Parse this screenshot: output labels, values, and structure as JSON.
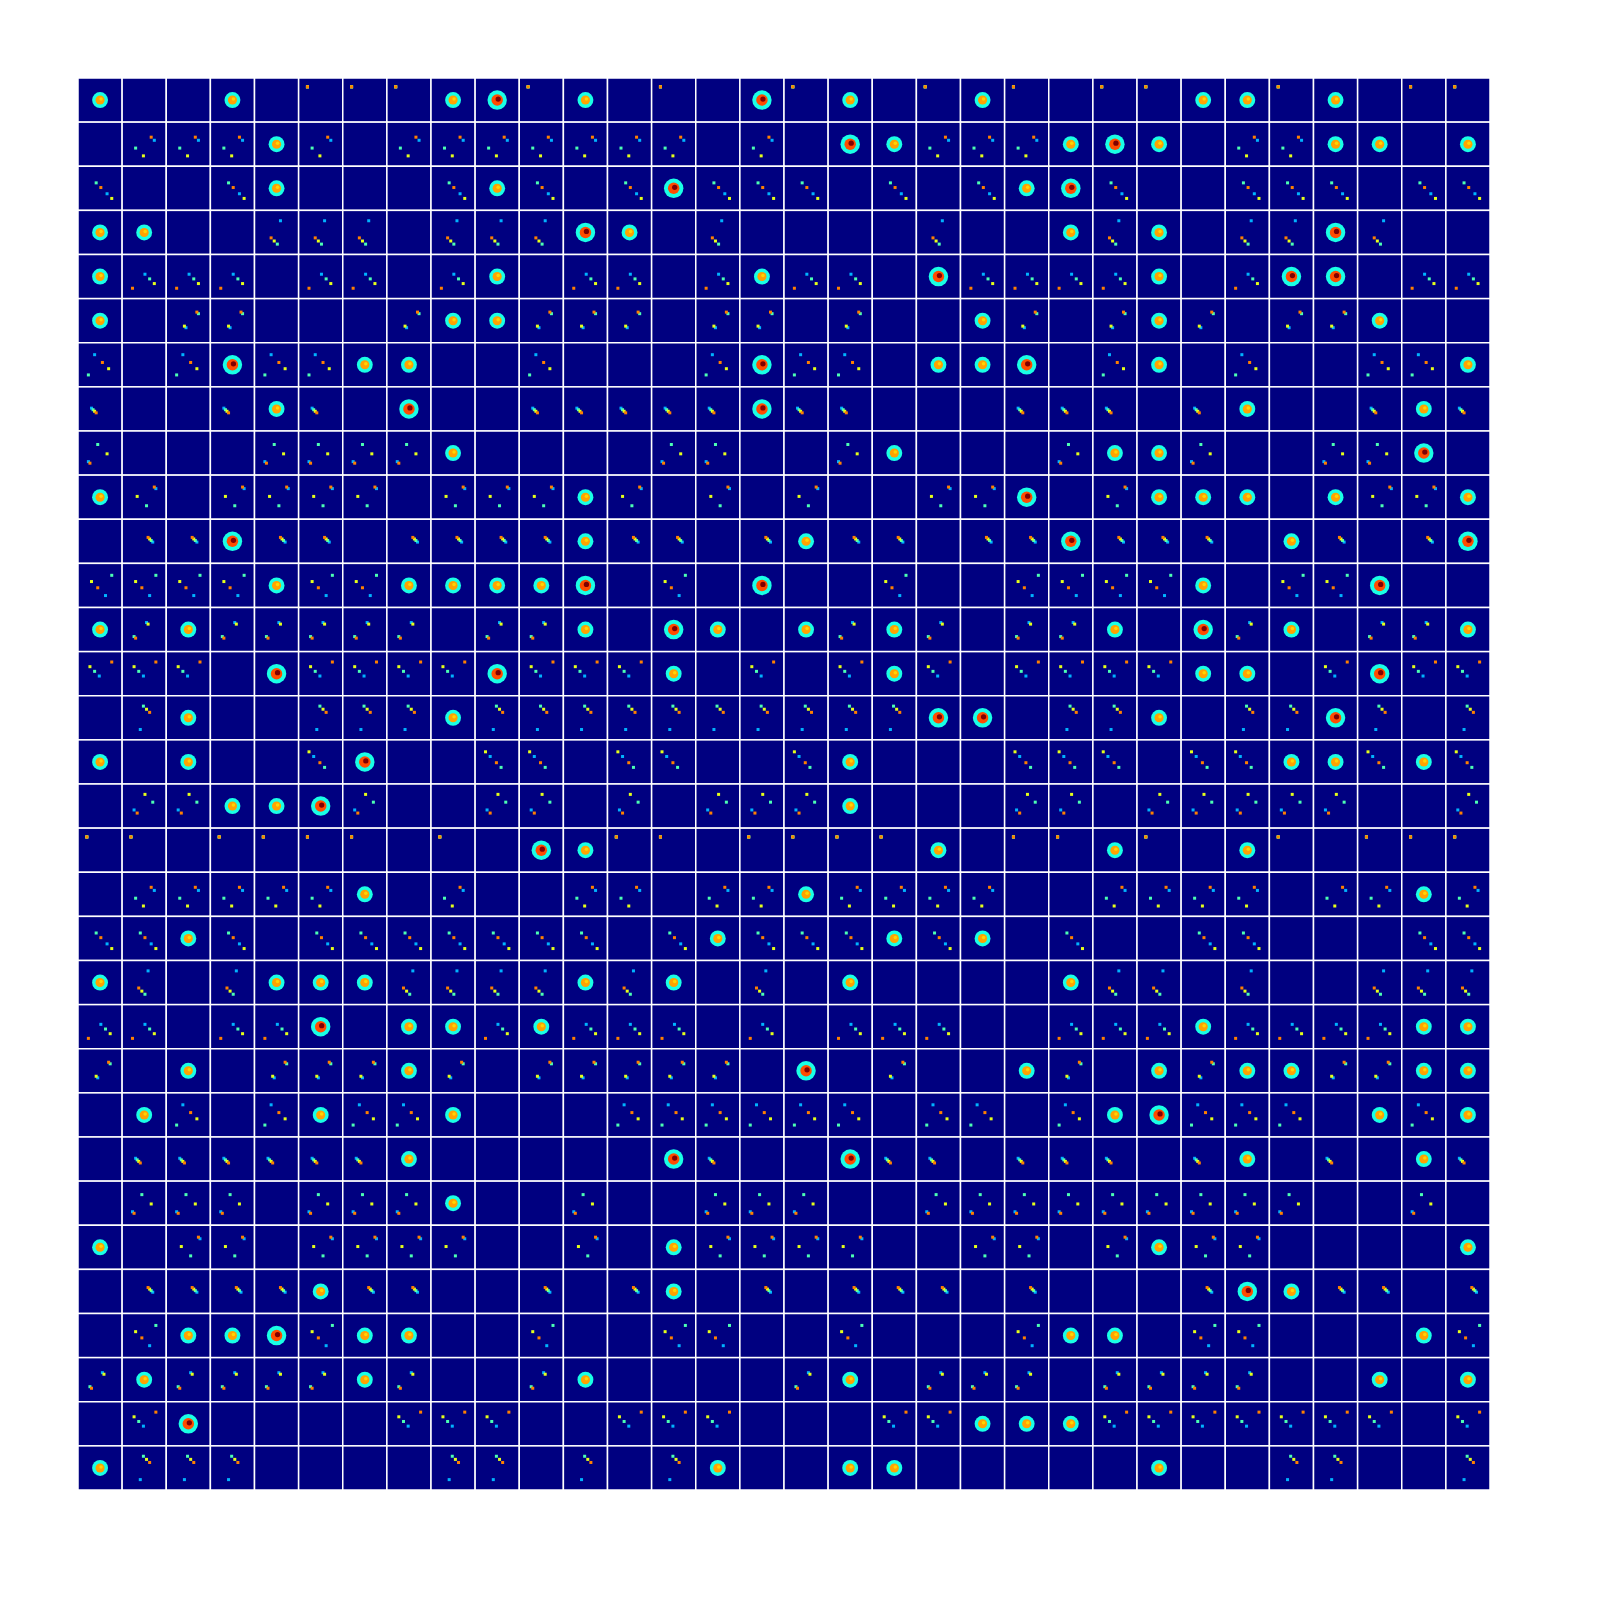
{
  "chart_data": {
    "type": "heatmap_grid",
    "tick_labels": false,
    "xlim": [
      0,
      32
    ],
    "ylim": [
      0,
      32
    ],
    "color_range": [
      0,
      3
    ],
    "cells": [
      [
        2,
        0,
        0,
        2,
        0,
        1,
        1,
        1,
        2,
        3,
        1,
        2,
        0,
        1,
        0,
        3,
        1,
        2,
        0,
        1,
        2,
        1,
        0,
        1,
        1,
        2,
        2,
        1,
        2,
        0,
        1,
        1
      ],
      [
        0,
        1,
        1,
        1,
        2,
        1,
        0,
        1,
        1,
        1,
        1,
        1,
        1,
        1,
        0,
        1,
        0,
        3,
        2,
        1,
        1,
        1,
        2,
        3,
        2,
        0,
        1,
        1,
        2,
        2,
        0,
        2
      ],
      [
        1,
        0,
        0,
        1,
        2,
        0,
        0,
        0,
        1,
        2,
        1,
        0,
        1,
        3,
        1,
        1,
        1,
        0,
        1,
        0,
        1,
        2,
        3,
        1,
        0,
        0,
        1,
        1,
        1,
        0,
        1,
        1
      ],
      [
        2,
        2,
        0,
        0,
        1,
        1,
        1,
        0,
        1,
        1,
        1,
        3,
        2,
        0,
        1,
        0,
        0,
        0,
        0,
        1,
        0,
        0,
        2,
        1,
        2,
        0,
        1,
        1,
        3,
        1,
        0,
        0
      ],
      [
        2,
        1,
        1,
        1,
        0,
        1,
        1,
        0,
        1,
        2,
        0,
        1,
        1,
        0,
        1,
        2,
        1,
        1,
        0,
        3,
        1,
        1,
        1,
        1,
        2,
        0,
        1,
        3,
        3,
        0,
        1,
        1
      ],
      [
        2,
        0,
        1,
        1,
        0,
        0,
        0,
        1,
        2,
        2,
        1,
        1,
        1,
        0,
        1,
        1,
        0,
        1,
        0,
        0,
        2,
        1,
        0,
        1,
        2,
        1,
        0,
        1,
        1,
        2,
        0,
        0
      ],
      [
        1,
        0,
        1,
        3,
        1,
        1,
        2,
        2,
        0,
        0,
        1,
        0,
        0,
        0,
        1,
        3,
        1,
        1,
        0,
        2,
        2,
        3,
        0,
        1,
        2,
        0,
        1,
        0,
        0,
        1,
        1,
        2
      ],
      [
        1,
        0,
        0,
        1,
        2,
        1,
        0,
        3,
        0,
        0,
        1,
        1,
        1,
        1,
        1,
        3,
        1,
        1,
        0,
        0,
        0,
        1,
        1,
        1,
        0,
        1,
        2,
        0,
        0,
        1,
        2,
        1
      ],
      [
        1,
        0,
        0,
        0,
        1,
        1,
        1,
        1,
        2,
        0,
        0,
        0,
        0,
        1,
        1,
        0,
        0,
        1,
        2,
        0,
        0,
        0,
        1,
        2,
        2,
        1,
        0,
        0,
        1,
        1,
        3,
        0
      ],
      [
        2,
        1,
        0,
        1,
        1,
        1,
        1,
        0,
        1,
        1,
        1,
        2,
        1,
        0,
        1,
        0,
        1,
        0,
        0,
        1,
        1,
        3,
        0,
        1,
        2,
        2,
        2,
        0,
        2,
        1,
        1,
        2
      ],
      [
        0,
        1,
        1,
        3,
        1,
        1,
        0,
        1,
        1,
        1,
        1,
        2,
        1,
        1,
        0,
        1,
        2,
        1,
        1,
        0,
        1,
        1,
        3,
        1,
        1,
        1,
        0,
        2,
        1,
        0,
        1,
        3
      ],
      [
        1,
        1,
        1,
        1,
        2,
        1,
        1,
        2,
        2,
        2,
        2,
        3,
        0,
        1,
        0,
        3,
        0,
        0,
        1,
        0,
        0,
        1,
        1,
        1,
        1,
        2,
        0,
        1,
        1,
        3,
        0,
        0
      ],
      [
        2,
        1,
        2,
        1,
        1,
        1,
        1,
        1,
        0,
        1,
        1,
        2,
        0,
        3,
        2,
        0,
        2,
        1,
        2,
        1,
        0,
        1,
        1,
        2,
        0,
        3,
        1,
        2,
        0,
        1,
        1,
        2
      ],
      [
        1,
        1,
        1,
        0,
        3,
        1,
        1,
        1,
        1,
        3,
        1,
        1,
        1,
        2,
        0,
        1,
        0,
        1,
        2,
        1,
        0,
        1,
        1,
        1,
        1,
        2,
        2,
        0,
        1,
        3,
        1,
        1
      ],
      [
        0,
        1,
        2,
        0,
        0,
        1,
        1,
        1,
        2,
        1,
        1,
        1,
        1,
        1,
        1,
        1,
        1,
        1,
        1,
        3,
        3,
        0,
        1,
        1,
        2,
        0,
        1,
        1,
        3,
        1,
        0,
        1
      ],
      [
        2,
        0,
        2,
        0,
        0,
        1,
        3,
        0,
        0,
        1,
        1,
        0,
        1,
        1,
        0,
        0,
        1,
        2,
        0,
        0,
        0,
        1,
        1,
        1,
        0,
        1,
        1,
        2,
        2,
        1,
        2,
        1
      ],
      [
        0,
        1,
        1,
        2,
        2,
        3,
        1,
        0,
        0,
        1,
        1,
        0,
        1,
        0,
        1,
        1,
        1,
        2,
        0,
        0,
        0,
        1,
        1,
        0,
        1,
        1,
        1,
        1,
        1,
        0,
        0,
        1
      ],
      [
        1,
        1,
        0,
        1,
        1,
        1,
        1,
        0,
        1,
        0,
        3,
        2,
        1,
        1,
        0,
        1,
        1,
        1,
        1,
        2,
        0,
        1,
        1,
        2,
        1,
        0,
        2,
        1,
        0,
        1,
        1,
        1
      ],
      [
        0,
        1,
        1,
        1,
        1,
        1,
        2,
        0,
        1,
        0,
        0,
        1,
        1,
        0,
        1,
        1,
        2,
        1,
        1,
        1,
        1,
        0,
        0,
        1,
        1,
        1,
        1,
        0,
        1,
        1,
        2,
        1
      ],
      [
        1,
        1,
        2,
        1,
        0,
        1,
        1,
        1,
        1,
        1,
        1,
        1,
        0,
        1,
        2,
        1,
        1,
        1,
        2,
        1,
        2,
        0,
        1,
        0,
        0,
        1,
        1,
        0,
        0,
        0,
        1,
        1
      ],
      [
        2,
        1,
        0,
        1,
        2,
        2,
        2,
        1,
        1,
        1,
        1,
        2,
        1,
        2,
        0,
        1,
        0,
        2,
        0,
        0,
        0,
        0,
        2,
        1,
        1,
        0,
        1,
        0,
        0,
        1,
        1,
        1
      ],
      [
        1,
        1,
        0,
        1,
        1,
        3,
        0,
        2,
        2,
        1,
        2,
        1,
        1,
        1,
        0,
        1,
        0,
        1,
        1,
        1,
        0,
        0,
        1,
        1,
        1,
        2,
        1,
        1,
        1,
        1,
        2,
        2
      ],
      [
        1,
        0,
        2,
        0,
        1,
        1,
        1,
        2,
        1,
        0,
        1,
        1,
        1,
        1,
        1,
        0,
        3,
        0,
        1,
        0,
        0,
        2,
        1,
        0,
        2,
        1,
        2,
        2,
        1,
        1,
        2,
        2
      ],
      [
        0,
        2,
        1,
        0,
        1,
        2,
        1,
        1,
        2,
        0,
        0,
        0,
        1,
        1,
        1,
        1,
        1,
        1,
        0,
        1,
        1,
        0,
        1,
        2,
        3,
        1,
        1,
        1,
        0,
        2,
        1,
        2
      ],
      [
        0,
        1,
        1,
        1,
        1,
        1,
        1,
        2,
        0,
        0,
        0,
        0,
        0,
        3,
        1,
        0,
        0,
        3,
        1,
        1,
        0,
        1,
        1,
        1,
        0,
        1,
        2,
        0,
        1,
        0,
        2,
        1
      ],
      [
        0,
        1,
        1,
        1,
        0,
        1,
        1,
        1,
        2,
        0,
        0,
        1,
        0,
        0,
        1,
        1,
        1,
        0,
        0,
        1,
        1,
        1,
        1,
        1,
        1,
        1,
        1,
        1,
        0,
        0,
        1,
        0
      ],
      [
        2,
        0,
        1,
        1,
        0,
        1,
        1,
        1,
        1,
        0,
        0,
        1,
        0,
        2,
        1,
        1,
        1,
        1,
        0,
        0,
        1,
        1,
        0,
        1,
        2,
        1,
        1,
        0,
        0,
        0,
        0,
        2
      ],
      [
        0,
        1,
        1,
        1,
        1,
        2,
        1,
        1,
        0,
        0,
        1,
        0,
        1,
        2,
        0,
        1,
        0,
        1,
        1,
        1,
        0,
        1,
        0,
        0,
        0,
        1,
        3,
        2,
        1,
        1,
        0,
        1
      ],
      [
        0,
        1,
        2,
        2,
        3,
        1,
        2,
        2,
        0,
        0,
        1,
        0,
        0,
        1,
        1,
        0,
        0,
        1,
        0,
        0,
        0,
        1,
        2,
        2,
        0,
        1,
        1,
        0,
        0,
        0,
        2,
        1
      ],
      [
        1,
        2,
        1,
        1,
        1,
        1,
        2,
        1,
        0,
        0,
        1,
        2,
        0,
        0,
        0,
        0,
        1,
        2,
        0,
        1,
        1,
        1,
        0,
        1,
        1,
        1,
        1,
        0,
        0,
        2,
        0,
        2
      ],
      [
        0,
        1,
        3,
        0,
        0,
        0,
        0,
        1,
        1,
        1,
        0,
        0,
        1,
        1,
        1,
        0,
        0,
        0,
        1,
        1,
        2,
        2,
        2,
        1,
        1,
        1,
        1,
        1,
        1,
        1,
        0,
        1
      ],
      [
        2,
        1,
        1,
        1,
        0,
        0,
        0,
        0,
        1,
        1,
        0,
        1,
        0,
        1,
        2,
        0,
        0,
        2,
        2,
        0,
        0,
        0,
        0,
        0,
        2,
        0,
        0,
        1,
        1,
        0,
        0,
        1
      ]
    ]
  }
}
